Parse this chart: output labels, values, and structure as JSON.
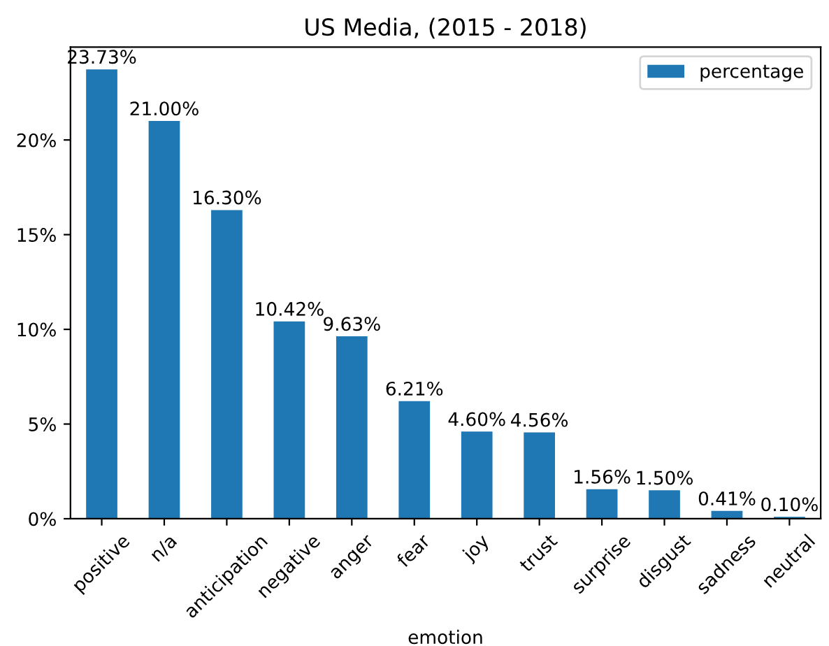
{
  "chart_data": {
    "type": "bar",
    "title": "US Media, (2015 - 2018)",
    "xlabel": "emotion",
    "categories": [
      "positive",
      "n/a",
      "anticipation",
      "negative",
      "anger",
      "fear",
      "joy",
      "trust",
      "surprise",
      "disgust",
      "sadness",
      "neutral"
    ],
    "series": [
      {
        "name": "percentage",
        "color": "#1f77b4",
        "values": [
          23.73,
          21.0,
          16.3,
          10.42,
          9.63,
          6.21,
          4.6,
          4.56,
          1.56,
          1.5,
          0.41,
          0.1
        ],
        "value_labels": [
          "23.73%",
          "21.00%",
          "16.30%",
          "10.42%",
          "9.63%",
          "6.21%",
          "4.60%",
          "4.56%",
          "1.56%",
          "1.50%",
          "0.41%",
          "0.10%"
        ]
      }
    ],
    "ylim": [
      0,
      24.9
    ],
    "yticks": [
      {
        "value": 0,
        "label": "0%"
      },
      {
        "value": 5,
        "label": "5%"
      },
      {
        "value": 10,
        "label": "10%"
      },
      {
        "value": 15,
        "label": "15%"
      },
      {
        "value": 20,
        "label": "20%"
      }
    ],
    "legend": "top right",
    "grid": false
  }
}
